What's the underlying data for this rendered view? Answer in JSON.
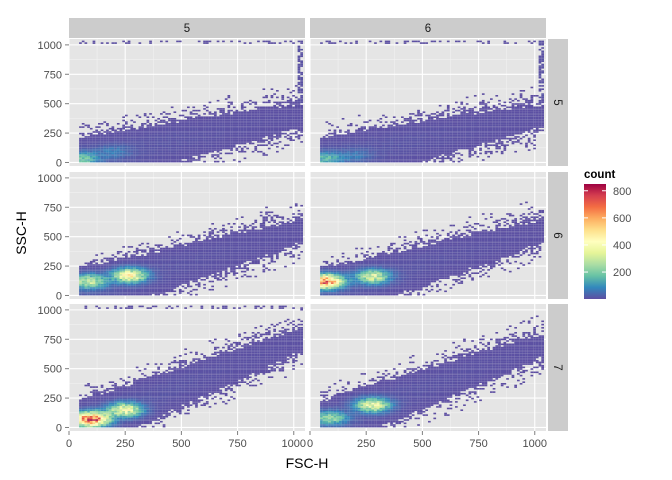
{
  "chart_data": {
    "type": "heatmap",
    "subtype": "hexbin-faceted",
    "xlabel": "FSC-H",
    "ylabel": "SSC-H",
    "xlim": [
      0,
      1050
    ],
    "ylim": [
      -30,
      1050
    ],
    "x_ticks": [
      "0",
      "250",
      "500",
      "750",
      "1000"
    ],
    "y_ticks": [
      "0",
      "250",
      "500",
      "750",
      "1000"
    ],
    "column_facets": [
      "5",
      "6"
    ],
    "row_facets": [
      "5",
      "6",
      "7"
    ],
    "grid": true,
    "legend": {
      "title": "count",
      "position": "right",
      "ticks": [
        "200",
        "400",
        "600",
        "800"
      ],
      "range": [
        1,
        850
      ],
      "colors": [
        "#5e4fa2",
        "#3288bd",
        "#66c2a5",
        "#abdda4",
        "#e6f598",
        "#ffffbf",
        "#fee08b",
        "#fdae61",
        "#f46d43",
        "#d53e4f",
        "#9e0142"
      ]
    },
    "panels": [
      {
        "col": "5",
        "row": "5",
        "peak_count": 180,
        "clusters": [
          {
            "x": 60,
            "y": 30,
            "count": 180
          },
          {
            "x": 200,
            "y": 90,
            "count": 60
          }
        ],
        "band_slope": 0.4,
        "saturated_top": true,
        "saturated_right": true
      },
      {
        "col": "6",
        "row": "5",
        "peak_count": 150,
        "clusters": [
          {
            "x": 70,
            "y": 30,
            "count": 150
          },
          {
            "x": 200,
            "y": 60,
            "count": 50
          }
        ],
        "band_slope": 0.4,
        "saturated_top": true,
        "saturated_right": true
      },
      {
        "col": "5",
        "row": "6",
        "peak_count": 420,
        "clusters": [
          {
            "x": 90,
            "y": 120,
            "count": 300
          },
          {
            "x": 270,
            "y": 170,
            "count": 420
          }
        ],
        "band_slope": 0.55,
        "saturated_top": false,
        "saturated_right": false
      },
      {
        "col": "6",
        "row": "6",
        "peak_count": 660,
        "clusters": [
          {
            "x": 70,
            "y": 120,
            "count": 660
          },
          {
            "x": 280,
            "y": 160,
            "count": 320
          }
        ],
        "band_slope": 0.55,
        "saturated_top": false,
        "saturated_right": false
      },
      {
        "col": "5",
        "row": "7",
        "peak_count": 760,
        "clusters": [
          {
            "x": 100,
            "y": 70,
            "count": 760
          },
          {
            "x": 250,
            "y": 150,
            "count": 380
          }
        ],
        "band_slope": 0.75,
        "saturated_top": true,
        "saturated_right": false
      },
      {
        "col": "6",
        "row": "7",
        "peak_count": 360,
        "clusters": [
          {
            "x": 90,
            "y": 80,
            "count": 220
          },
          {
            "x": 280,
            "y": 190,
            "count": 360
          }
        ],
        "band_slope": 0.7,
        "saturated_top": false,
        "saturated_right": false
      }
    ]
  }
}
